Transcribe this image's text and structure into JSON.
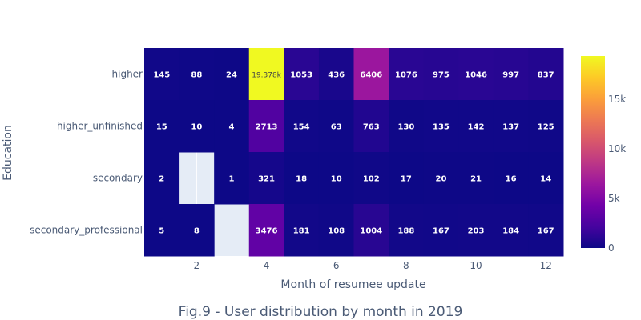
{
  "chart_data": {
    "type": "heatmap",
    "title": "Fig.9 - User distribution by month in 2019",
    "xlabel": "Month of resumee update",
    "ylabel": "Education",
    "x": [
      1,
      2,
      3,
      4,
      5,
      6,
      7,
      8,
      9,
      10,
      11,
      12
    ],
    "x_ticks": [
      2,
      4,
      6,
      8,
      10,
      12
    ],
    "x_range": [
      0.5,
      12.5
    ],
    "y": [
      "higher",
      "higher_unfinished",
      "secondary",
      "secondary_professional"
    ],
    "z": [
      [
        145,
        88,
        24,
        19378,
        1053,
        436,
        6406,
        1076,
        975,
        1046,
        997,
        837
      ],
      [
        15,
        10,
        4,
        2713,
        154,
        63,
        763,
        130,
        135,
        142,
        137,
        125
      ],
      [
        2,
        null,
        1,
        321,
        18,
        10,
        102,
        17,
        20,
        21,
        16,
        14
      ],
      [
        5,
        8,
        null,
        3476,
        181,
        108,
        1004,
        188,
        167,
        203,
        184,
        167
      ]
    ],
    "text": [
      [
        "145",
        "88",
        "24",
        "19.378k",
        "1053",
        "436",
        "6406",
        "1076",
        "975",
        "1046",
        "997",
        "837"
      ],
      [
        "15",
        "10",
        "4",
        "2713",
        "154",
        "63",
        "763",
        "130",
        "135",
        "142",
        "137",
        "125"
      ],
      [
        "2",
        "",
        "1",
        "321",
        "18",
        "10",
        "102",
        "17",
        "20",
        "21",
        "16",
        "14"
      ],
      [
        "5",
        "8",
        "",
        "3476",
        "181",
        "108",
        "1004",
        "188",
        "167",
        "203",
        "184",
        "167"
      ]
    ],
    "zmin": 0,
    "zmax": 19378,
    "colorscale": "plasma",
    "colorbar_ticks": [
      0,
      5000,
      10000,
      15000
    ],
    "colorbar_tick_labels": [
      "0",
      "5k",
      "10k",
      "15k"
    ],
    "missing_color": "#e5ecf6",
    "grid": true
  }
}
